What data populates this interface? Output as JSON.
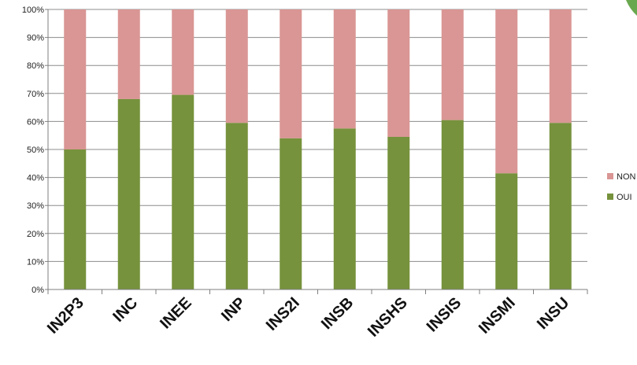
{
  "chart_data": {
    "type": "bar",
    "stacked": true,
    "percent_stacked": true,
    "categories": [
      "IN2P3",
      "INC",
      "INEE",
      "INP",
      "INS2I",
      "INSB",
      "INSHS",
      "INSIS",
      "INSMI",
      "INSU"
    ],
    "series": [
      {
        "name": "OUI",
        "color": "#76923c",
        "values": [
          50,
          68,
          69.5,
          59.5,
          54,
          57.5,
          54.5,
          60.5,
          41.5,
          59.5
        ]
      },
      {
        "name": "NON",
        "color": "#d99694",
        "values": [
          50,
          32,
          30.5,
          40.5,
          46,
          42.5,
          45.5,
          39.5,
          58.5,
          40.5
        ]
      }
    ],
    "ylim": [
      0,
      100
    ],
    "yticks": [
      "0%",
      "10%",
      "20%",
      "30%",
      "40%",
      "50%",
      "60%",
      "70%",
      "80%",
      "90%",
      "100%"
    ],
    "grid": true,
    "legend_placement": "right",
    "legend": [
      {
        "label": "NON",
        "color": "#d99694"
      },
      {
        "label": "OUI",
        "color": "#76923c"
      }
    ]
  }
}
